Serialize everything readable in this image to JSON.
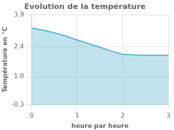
{
  "chart_data": {
    "type": "area",
    "title": "Evolution de la température",
    "x_label": "heure par heure",
    "y_label": "Température en °C",
    "x": [
      0,
      0.25,
      0.5,
      0.75,
      1.0,
      1.25,
      1.5,
      1.75,
      2.0,
      2.25,
      2.5,
      2.75,
      3.0
    ],
    "values": [
      3.28,
      3.18,
      3.05,
      2.9,
      2.72,
      2.55,
      2.38,
      2.2,
      2.05,
      2.02,
      2.0,
      2.0,
      2.0
    ],
    "color": "#44aacc",
    "xlim": [
      0,
      3
    ],
    "xticks": [
      0,
      1,
      2,
      3
    ],
    "ylim": [
      -0.3,
      3.9
    ],
    "yticks": [
      -0.3,
      {
        "value": 1.0,
        "label": "1.0"
      },
      2.4,
      3.9
    ],
    "grid": true
  }
}
